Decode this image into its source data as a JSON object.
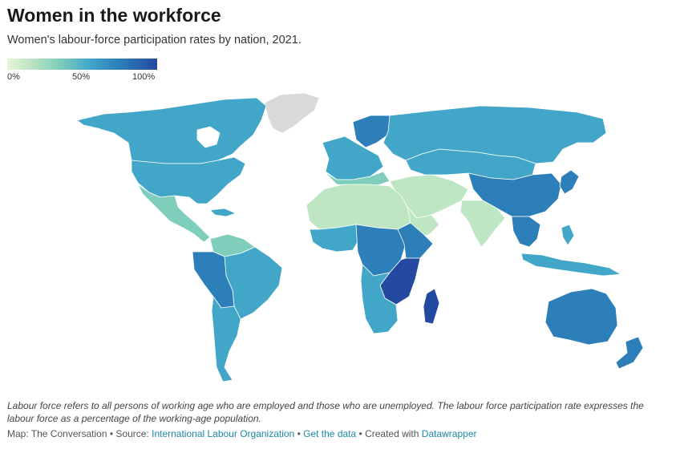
{
  "header": {
    "title": "Women in the workforce",
    "subtitle": "Women's labour-force participation rates by nation, 2021."
  },
  "legend": {
    "min_label": "0%",
    "mid_label": "50%",
    "max_label": "100%",
    "colors": [
      "#e6f5d6",
      "#bfe6c3",
      "#7fcdbb",
      "#41a6c8",
      "#2c7fb8",
      "#234aa0"
    ]
  },
  "map": {
    "no_data_color": "#d9d9d9",
    "regions": [
      {
        "name": "Canada",
        "value": 61
      },
      {
        "name": "United States",
        "value": 57
      },
      {
        "name": "Mexico",
        "value": 44
      },
      {
        "name": "Brazil",
        "value": 53
      },
      {
        "name": "Peru",
        "value": 70
      },
      {
        "name": "Bolivia",
        "value": 70
      },
      {
        "name": "Argentina",
        "value": 50
      },
      {
        "name": "Russia",
        "value": 55
      },
      {
        "name": "China",
        "value": 61
      },
      {
        "name": "India",
        "value": 21
      },
      {
        "name": "Saudi Arabia",
        "value": 23
      },
      {
        "name": "Egypt",
        "value": 15
      },
      {
        "name": "Algeria",
        "value": 17
      },
      {
        "name": "Ethiopia",
        "value": 72
      },
      {
        "name": "Madagascar",
        "value": 83
      },
      {
        "name": "Australia",
        "value": 61
      },
      {
        "name": "New Zealand",
        "value": 66
      },
      {
        "name": "Greenland",
        "value": null
      }
    ]
  },
  "note": "Labour force refers to all persons of working age who are employed and those who are unemployed. The labour force participation rate expresses the labour force as a percentage of the working-age population.",
  "footer": {
    "map_credit": "Map: The Conversation",
    "source_prefix": "Source:",
    "source_link": "International Labour Organization",
    "get_data": "Get the data",
    "created_prefix": "Created with",
    "created_link": "Datawrapper",
    "separator": "•"
  }
}
